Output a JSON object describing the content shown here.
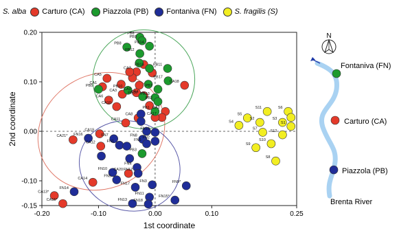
{
  "legend": {
    "group_label": "S. alba",
    "items": [
      {
        "label": "Carturo (CA)",
        "color": "#e43a2a"
      },
      {
        "label": "Piazzola (PB)",
        "color": "#1c9a2e"
      },
      {
        "label": "Fontaniva (FN)",
        "color": "#1f2d98"
      },
      {
        "label": "S. fragilis (S)",
        "color": "#f2ee22"
      }
    ]
  },
  "map": {
    "north_label": "N",
    "sites": [
      "Fontaniva (FN)",
      "Carturo (CA)",
      "Piazzola (PB)"
    ],
    "river_label": "Brenta River"
  },
  "chart_data": {
    "type": "scatter",
    "xlabel": "1st coordinate",
    "ylabel": "2nd coordinate",
    "xlim": [
      -0.2,
      0.25
    ],
    "ylim": [
      -0.15,
      0.2
    ],
    "xticks": [
      "-0.20",
      "-0.10",
      "0.00",
      "0.10",
      "0.25"
    ],
    "xtick_values": [
      -0.2,
      -0.1,
      0.0,
      0.1,
      0.25
    ],
    "yticks": [
      "0.20",
      "0.10",
      "0.00",
      "-0.10",
      "-0.15"
    ],
    "ytick_values": [
      0.2,
      0.1,
      0.0,
      -0.1,
      -0.15
    ],
    "reference_lines": {
      "x": 0,
      "y": 0
    },
    "series": [
      {
        "name": "Carturo (CA)",
        "color": "#e43a2a",
        "points": [
          {
            "label": "CA5",
            "x": -0.085,
            "y": 0.107
          },
          {
            "label": "CA1",
            "x": -0.093,
            "y": 0.09
          },
          {
            "label": "CA6",
            "x": -0.082,
            "y": 0.063
          },
          {
            "label": "CA3",
            "x": -0.058,
            "y": 0.075
          },
          {
            "label": "CA7",
            "x": -0.033,
            "y": 0.12
          },
          {
            "label": "CA9",
            "x": -0.033,
            "y": 0.078
          },
          {
            "label": "CA4",
            "x": -0.02,
            "y": 0.072
          },
          {
            "label": "CA8",
            "x": -0.03,
            "y": 0.027
          },
          {
            "label": "CA10",
            "x": -0.068,
            "y": 0.05
          },
          {
            "label": "CA11",
            "x": -0.052,
            "y": 0.017
          },
          {
            "label": "CA12",
            "x": -0.096,
            "y": -0.03
          },
          {
            "label": "CA14",
            "x": -0.11,
            "y": -0.103
          },
          {
            "label": "CA13*",
            "x": -0.178,
            "y": -0.13
          },
          {
            "label": "CA15*",
            "x": -0.163,
            "y": -0.146
          },
          {
            "label": "CA19",
            "x": -0.098,
            "y": -0.005
          },
          {
            "label": "CA18",
            "x": 0.052,
            "y": 0.093
          },
          {
            "label": "CA2",
            "x": 0.018,
            "y": 0.04
          },
          {
            "label": "CA17",
            "x": 0.012,
            "y": 0.028
          },
          {
            "label": "CA20",
            "x": -0.047,
            "y": -0.085
          },
          {
            "label": "CA21*",
            "x": -0.145,
            "y": -0.017
          },
          {
            "label": "",
            "x": -0.02,
            "y": 0.135
          },
          {
            "label": "",
            "x": -0.04,
            "y": 0.108
          },
          {
            "label": "",
            "x": -0.005,
            "y": 0.118
          },
          {
            "label": "",
            "x": -0.045,
            "y": 0.12
          },
          {
            "label": "",
            "x": -0.01,
            "y": 0.052
          },
          {
            "label": "",
            "x": 0.0,
            "y": 0.028
          },
          {
            "label": "",
            "x": -0.06,
            "y": 0.095
          },
          {
            "label": "",
            "x": -0.028,
            "y": 0.093
          }
        ]
      },
      {
        "name": "Piazzola (PB)",
        "color": "#1c9a2e",
        "points": [
          {
            "label": "PB6",
            "x": -0.027,
            "y": 0.19
          },
          {
            "label": "PB9",
            "x": -0.023,
            "y": 0.183
          },
          {
            "label": "PB14",
            "x": -0.01,
            "y": 0.172
          },
          {
            "label": "PB8",
            "x": -0.05,
            "y": 0.17
          },
          {
            "label": "PB12",
            "x": -0.027,
            "y": 0.157
          },
          {
            "label": "PB16",
            "x": -0.01,
            "y": 0.127
          },
          {
            "label": "PB11",
            "x": 0.022,
            "y": 0.127
          },
          {
            "label": "PB17",
            "x": 0.023,
            "y": 0.102
          },
          {
            "label": "PB7",
            "x": 0.005,
            "y": 0.085
          },
          {
            "label": "PB10",
            "x": -0.048,
            "y": 0.083
          },
          {
            "label": "PB13",
            "x": 0.0,
            "y": 0.068
          },
          {
            "label": "PB15",
            "x": -0.022,
            "y": 0.07
          },
          {
            "label": "PB2",
            "x": 0.005,
            "y": 0.06
          },
          {
            "label": "PB1",
            "x": 0.0,
            "y": 0.04
          },
          {
            "label": "PB3",
            "x": -0.023,
            "y": -0.045
          },
          {
            "label": "PB5",
            "x": -0.1,
            "y": 0.085
          },
          {
            "label": "",
            "x": -0.028,
            "y": 0.138
          },
          {
            "label": "",
            "x": -0.012,
            "y": 0.095
          }
        ]
      },
      {
        "name": "Fontaniva (FN)",
        "color": "#1f2d98",
        "points": [
          {
            "label": "FN16",
            "x": -0.118,
            "y": -0.014
          },
          {
            "label": "FN7",
            "x": -0.073,
            "y": -0.015
          },
          {
            "label": "FN8",
            "x": -0.022,
            "y": -0.016
          },
          {
            "label": "FN2",
            "x": 0.0,
            "y": -0.02
          },
          {
            "label": "FN19",
            "x": 0.0,
            "y": -0.002
          },
          {
            "label": "FN4",
            "x": -0.032,
            "y": -0.073
          },
          {
            "label": "FN10",
            "x": -0.075,
            "y": -0.083
          },
          {
            "label": "FN5",
            "x": -0.068,
            "y": -0.098
          },
          {
            "label": "FN12",
            "x": -0.03,
            "y": -0.085
          },
          {
            "label": "FN17",
            "x": -0.035,
            "y": -0.113
          },
          {
            "label": "FN3",
            "x": -0.005,
            "y": -0.108
          },
          {
            "label": "FN9*",
            "x": 0.055,
            "y": -0.11
          },
          {
            "label": "FN14",
            "x": -0.143,
            "y": -0.122
          },
          {
            "label": "FN11",
            "x": -0.01,
            "y": -0.133
          },
          {
            "label": "FN13",
            "x": -0.04,
            "y": -0.146
          },
          {
            "label": "FN18",
            "x": -0.012,
            "y": -0.147
          },
          {
            "label": "FN15*",
            "x": 0.035,
            "y": -0.139
          },
          {
            "label": "FN6",
            "x": -0.015,
            "y": -0.025
          },
          {
            "label": "FN1",
            "x": -0.063,
            "y": -0.028
          },
          {
            "label": "",
            "x": -0.025,
            "y": 0.035
          },
          {
            "label": "",
            "x": -0.015,
            "y": 0.0
          },
          {
            "label": "",
            "x": -0.045,
            "y": -0.055
          },
          {
            "label": "",
            "x": -0.095,
            "y": -0.05
          },
          {
            "label": "",
            "x": -0.05,
            "y": -0.03
          },
          {
            "label": "",
            "x": -0.025,
            "y": 0.02
          }
        ]
      },
      {
        "name": "S. fragilis (S)",
        "color": "#f2ee22",
        "points": [
          {
            "label": "S11",
            "x": 0.198,
            "y": 0.04
          },
          {
            "label": "S6",
            "x": 0.235,
            "y": 0.04
          },
          {
            "label": "S5",
            "x": 0.163,
            "y": 0.027
          },
          {
            "label": "S2",
            "x": 0.185,
            "y": 0.018
          },
          {
            "label": "S3",
            "x": 0.225,
            "y": 0.018
          },
          {
            "label": "S4",
            "x": 0.148,
            "y": 0.012
          },
          {
            "label": "S1",
            "x": 0.24,
            "y": 0.01
          },
          {
            "label": "S7",
            "x": 0.19,
            "y": -0.002
          },
          {
            "label": "S12",
            "x": 0.225,
            "y": -0.007
          },
          {
            "label": "S10",
            "x": 0.205,
            "y": -0.025
          },
          {
            "label": "S9",
            "x": 0.178,
            "y": -0.033
          },
          {
            "label": "S8",
            "x": 0.213,
            "y": -0.06
          },
          {
            "label": "",
            "x": 0.24,
            "y": 0.028
          }
        ]
      }
    ],
    "ellipses": [
      {
        "group": "Carturo (CA)",
        "color": "#e07a6a",
        "cx": -0.095,
        "cy": 0.0,
        "rx": 0.115,
        "ry": 0.115,
        "angle_deg": -28
      },
      {
        "group": "Piazzola (PB)",
        "color": "#4aa65a",
        "cx": -0.02,
        "cy": 0.105,
        "rx": 0.09,
        "ry": 0.1,
        "angle_deg": 0
      },
      {
        "group": "Fontaniva (FN)",
        "color": "#5a5aa8",
        "cx": -0.045,
        "cy": -0.07,
        "rx": 0.09,
        "ry": 0.09,
        "angle_deg": 18
      }
    ]
  }
}
